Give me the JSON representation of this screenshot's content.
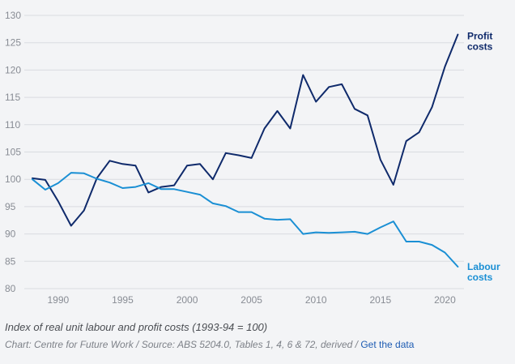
{
  "chart_data": {
    "type": "line",
    "title": "",
    "xlabel": "",
    "ylabel": "",
    "xlim": [
      1987.5,
      2022
    ],
    "ylim": [
      80,
      130
    ],
    "x_ticks": [
      1990,
      1995,
      2000,
      2005,
      2010,
      2015,
      2020
    ],
    "y_ticks": [
      80,
      85,
      90,
      95,
      100,
      105,
      110,
      115,
      120,
      125,
      130
    ],
    "grid": "horizontal",
    "x": [
      1988,
      1989,
      1990,
      1991,
      1992,
      1993,
      1994,
      1995,
      1996,
      1997,
      1998,
      1999,
      2000,
      2001,
      2002,
      2003,
      2004,
      2005,
      2006,
      2007,
      2008,
      2009,
      2010,
      2011,
      2012,
      2013,
      2014,
      2015,
      2016,
      2017,
      2018,
      2019,
      2020,
      2021
    ],
    "series": [
      {
        "name": "Profit costs",
        "label_lines": [
          "Profit",
          "costs"
        ],
        "color": "#0f2a6b",
        "values": [
          100.2,
          99.9,
          96.0,
          91.5,
          94.3,
          100.2,
          103.4,
          102.8,
          102.5,
          97.6,
          98.6,
          98.9,
          102.5,
          102.8,
          100.0,
          104.8,
          104.4,
          103.9,
          109.3,
          112.5,
          109.3,
          119.1,
          114.2,
          116.9,
          117.4,
          112.9,
          111.7,
          103.6,
          99.0,
          107.0,
          108.6,
          113.2,
          120.6,
          126.5
        ]
      },
      {
        "name": "Labour costs",
        "label_lines": [
          "Labour",
          "costs"
        ],
        "color": "#1a8fd4",
        "values": [
          100.0,
          98.1,
          99.3,
          101.2,
          101.1,
          100.1,
          99.4,
          98.4,
          98.6,
          99.3,
          98.2,
          98.2,
          97.7,
          97.2,
          95.6,
          95.1,
          94.0,
          94.0,
          92.8,
          92.6,
          92.7,
          90.0,
          90.3,
          90.2,
          90.3,
          90.4,
          90.0,
          91.2,
          92.3,
          88.6,
          88.6,
          88.0,
          86.6,
          84.0
        ]
      }
    ]
  },
  "caption": "Index of real unit labour and profit costs (1993-94 = 100)",
  "source_text": "Chart: Centre for Future Work / Source: ABS 5204.0, Tables 1, 4, 6 & 72, derived / ",
  "source_link": "Get the data"
}
